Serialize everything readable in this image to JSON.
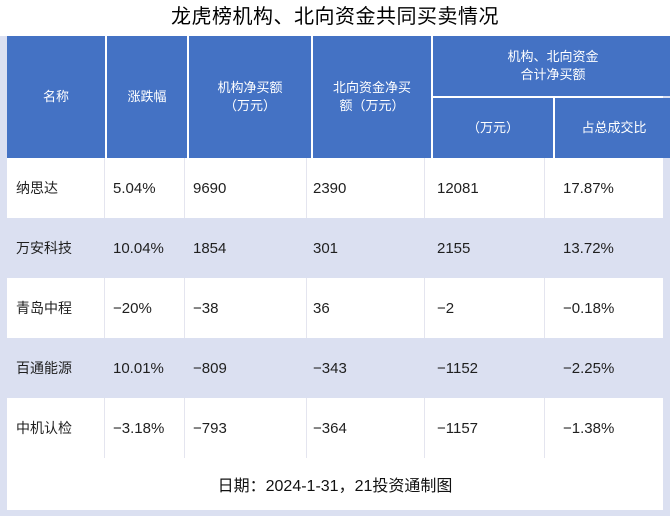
{
  "title": "龙虎榜机构、北向资金共同买卖情况",
  "header": {
    "name": "名称",
    "change": "涨跌幅",
    "inst_line1": "机构净买额",
    "inst_line2": "（万元）",
    "north_line1": "北向资金净买",
    "north_line2": "额（万元）",
    "group_line1": "机构、北向资金",
    "group_line2": "合计净买额",
    "sub_wan": "（万元）",
    "sub_ratio": "占总成交比"
  },
  "chart_data": {
    "type": "table",
    "title": "龙虎榜机构、北向资金共同买卖情况",
    "columns": [
      "名称",
      "涨跌幅",
      "机构净买额（万元）",
      "北向资金净买额（万元）",
      "机构、北向资金合计净买额（万元）",
      "机构、北向资金合计净买额占总成交比"
    ],
    "rows": [
      [
        "纳思达",
        "5.04%",
        "9690",
        "2390",
        "12081",
        "17.87%"
      ],
      [
        "万安科技",
        "10.04%",
        "1854",
        "301",
        "2155",
        "13.72%"
      ],
      [
        "青岛中程",
        "−20%",
        "−38",
        "36",
        "−2",
        "−0.18%"
      ],
      [
        "百通能源",
        "10.01%",
        "−809",
        "−343",
        "−1152",
        "−2.25%"
      ],
      [
        "中机认检",
        "−3.18%",
        "−793",
        "−364",
        "−1157",
        "−1.38%"
      ]
    ],
    "note": "日期：2024-1-31，21投资通制图"
  },
  "footer": {
    "text": "日期：2024-1-31，21投资通制图"
  },
  "colors": {
    "header_bg": "#4472c4",
    "header_text": "#ffffff",
    "row_stripe": "#dbe0f1",
    "row_alt": "#ffffff",
    "grid_border": "#e4e5ef",
    "body_text": "#1f1f1f"
  }
}
